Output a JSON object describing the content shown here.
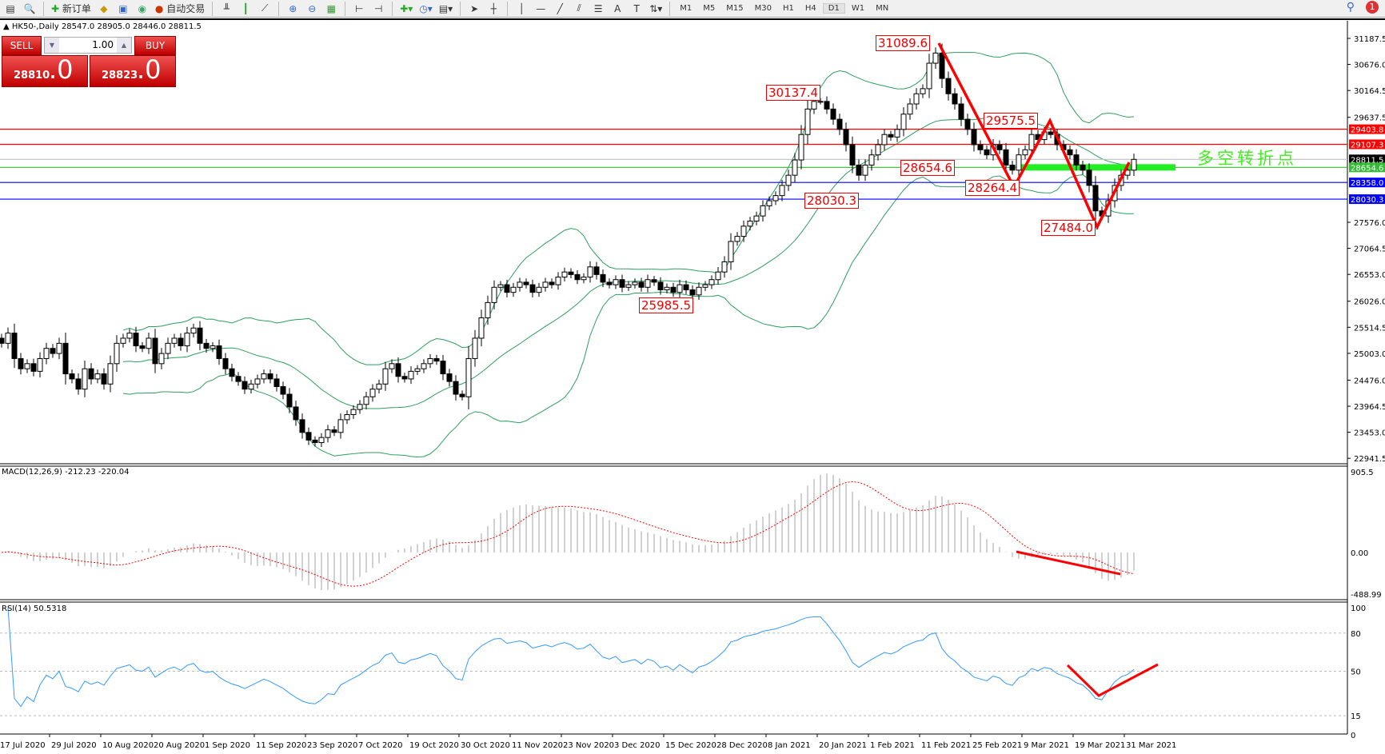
{
  "toolbar": {
    "new_order": "新订单",
    "auto_trade": "自动交易",
    "timeframes": [
      "M1",
      "M5",
      "M15",
      "M30",
      "H1",
      "H4",
      "D1",
      "W1",
      "MN"
    ],
    "active_timeframe": "D1",
    "notifications": "1"
  },
  "chart_header": "HK50-,Daily  28547.0 28905.0 28446.0 28811.5",
  "trade_panel": {
    "sell_label": "SELL",
    "buy_label": "BUY",
    "lot": "1.00",
    "sell_price_main": "28810",
    "sell_price_frac": ".0",
    "buy_price_main": "28823",
    "buy_price_frac": ".0"
  },
  "macd_label": "MACD(12,26,9) -212.23 -220.04",
  "rsi_label": "RSI(14) 50.5318",
  "annotation_text": "多空转折点",
  "chart_data": {
    "type": "candlestick",
    "symbol": "HK50-",
    "period": "Daily",
    "price_ticks": [
      "31187.5",
      "30676.0",
      "30164.5",
      "29637.5",
      "27576.0",
      "27064.5",
      "26553.0",
      "26026.0",
      "25514.5",
      "25003.0",
      "24476.0",
      "23964.5",
      "23453.0",
      "22941.5"
    ],
    "ylim": [
      22941.5,
      31187.5
    ],
    "date_ticks": [
      "17 Jul 2020",
      "29 Jul 2020",
      "10 Aug 2020",
      "20 Aug 2020",
      "1 Sep 2020",
      "11 Sep 2020",
      "23 Sep 2020",
      "7 Oct 2020",
      "19 Oct 2020",
      "30 Oct 2020",
      "11 Nov 2020",
      "23 Nov 2020",
      "3 Dec 2020",
      "15 Dec 2020",
      "28 Dec 2020",
      "8 Jan 2021",
      "20 Jan 2021",
      "1 Feb 2021",
      "11 Feb 2021",
      "25 Feb 2021",
      "9 Mar 2021",
      "19 Mar 2021",
      "31 Mar 2021"
    ],
    "closes": [
      25200,
      25400,
      24900,
      24700,
      24800,
      24650,
      24900,
      25100,
      25000,
      25200,
      24600,
      24500,
      24300,
      24700,
      24500,
      24600,
      24400,
      24800,
      25200,
      25300,
      25400,
      25150,
      25100,
      25300,
      24800,
      25000,
      25200,
      25300,
      25150,
      25400,
      25500,
      25200,
      25100,
      25150,
      24900,
      24700,
      24550,
      24450,
      24300,
      24400,
      24500,
      24600,
      24500,
      24350,
      24200,
      23950,
      23700,
      23450,
      23300,
      23250,
      23350,
      23500,
      23450,
      23700,
      23800,
      23900,
      24000,
      24150,
      24300,
      24400,
      24700,
      24800,
      24550,
      24500,
      24650,
      24700,
      24800,
      24900,
      24850,
      24600,
      24450,
      24200,
      24150,
      24900,
      25300,
      25700,
      26000,
      26300,
      26350,
      26200,
      26300,
      26400,
      26350,
      26200,
      26300,
      26400,
      26350,
      26500,
      26600,
      26550,
      26450,
      26500,
      26700,
      26550,
      26400,
      26350,
      26450,
      26300,
      26350,
      26400,
      26300,
      26450,
      26400,
      26250,
      26300,
      26200,
      26350,
      26250,
      26150,
      26300,
      26350,
      26450,
      26600,
      26800,
      27200,
      27300,
      27500,
      27600,
      27700,
      27900,
      28000,
      28100,
      28300,
      28500,
      28800,
      29300,
      29800,
      29950,
      29950,
      29800,
      29600,
      29400,
      29100,
      28700,
      28500,
      28700,
      28900,
      29100,
      29300,
      29250,
      29400,
      29700,
      29900,
      30100,
      30200,
      30700,
      30900,
      30400,
      30100,
      29900,
      29600,
      29400,
      29100,
      29000,
      28900,
      29100,
      29000,
      28700,
      28600,
      28900,
      29000,
      29300,
      29200,
      29350,
      29300,
      29100,
      29000,
      28900,
      28700,
      28600,
      28300,
      27800,
      27700,
      28000,
      28300,
      28500,
      28600,
      28811.5
    ],
    "hlines": [
      {
        "price": "29403.8",
        "color": "#ff0000"
      },
      {
        "price": "29107.3",
        "color": "#ff0000"
      },
      {
        "price": "28811.5",
        "color": "#000000",
        "line": "#c0c0c0"
      },
      {
        "price": "28654.6",
        "color": "#33bb33"
      },
      {
        "price": "28358.0",
        "color": "#0000ff"
      },
      {
        "price": "28030.3",
        "color": "#0000ff"
      }
    ],
    "price_labels": [
      "31089.6",
      "30137.4",
      "28030.3",
      "25985.5",
      "28654.6",
      "28264.4",
      "29575.5",
      "27484.0"
    ],
    "indicators": {
      "bollinger_color": "#2e9e5e",
      "macd": {
        "ticks": [
          "905.5",
          "0.00",
          "-488.99"
        ],
        "histogram_color": "#c0c0c0",
        "signal_color": "#ff0000"
      },
      "rsi": {
        "ticks": [
          "100",
          "80",
          "50",
          "15",
          "0"
        ],
        "color": "#3399ff"
      }
    }
  }
}
